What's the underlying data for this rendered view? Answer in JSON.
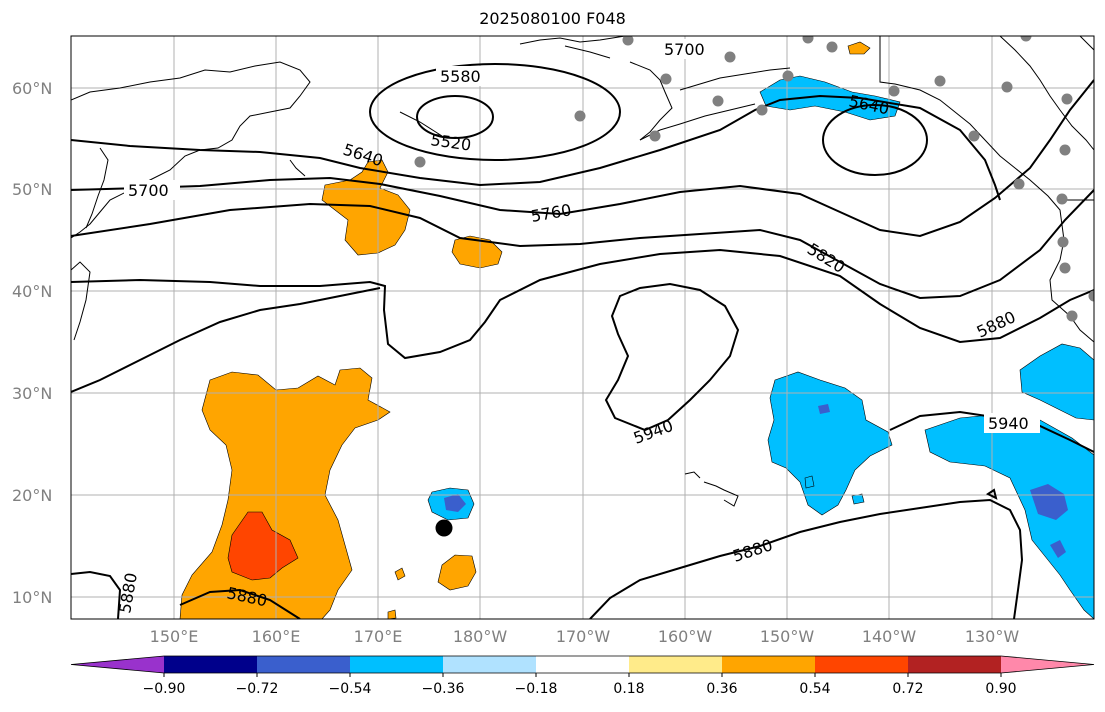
{
  "title": "2025080100 F048",
  "colors": {
    "grid": "#b0b0b0",
    "contour": "#000000",
    "coast": "#000000",
    "station_dot": "#808080",
    "tick_label": "#808080"
  },
  "latitude_labels": [
    "60°N",
    "50°N",
    "40°N",
    "30°N",
    "20°N",
    "10°N"
  ],
  "longitude_labels": [
    "150°E",
    "160°E",
    "170°E",
    "180°W",
    "170°W",
    "160°W",
    "150°W",
    "140°W",
    "130°W"
  ],
  "contour_labels": [
    "5700",
    "5580",
    "5520",
    "5640",
    "5640",
    "5700",
    "5760",
    "5820",
    "5880",
    "5940",
    "5940",
    "5880",
    "5880",
    "5880"
  ],
  "colorbar": {
    "colors": [
      "#9932cc",
      "#00008b",
      "#3a5fcd",
      "#00bfff",
      "#b0e2ff",
      "#ffffff",
      "#ffeb8a",
      "#ffa500",
      "#ff4500",
      "#b22222",
      "#ff88aa"
    ],
    "tick_labels": [
      "−0.90",
      "−0.72",
      "−0.54",
      "−0.36",
      "−0.18",
      "0.18",
      "0.36",
      "0.54",
      "0.72",
      "0.90"
    ]
  }
}
